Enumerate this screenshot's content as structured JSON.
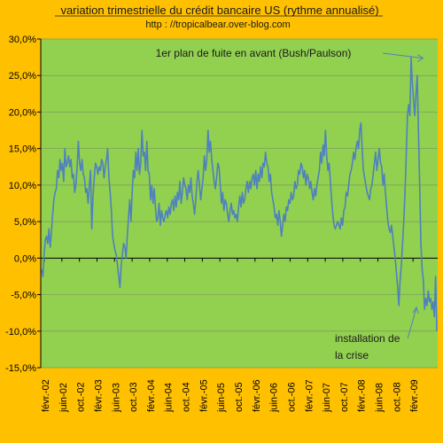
{
  "chart_data": {
    "type": "line",
    "title": "variation trimestrielle du crédit bancaire US (rythme annualisé)",
    "subtitle": "http : //tropicalbear.over-blog.com",
    "xlabel": "",
    "ylabel": "",
    "ylim": [
      -15,
      30
    ],
    "y_ticks": [
      30,
      25,
      20,
      15,
      10,
      5,
      0,
      -5,
      -10,
      -15
    ],
    "y_tick_labels": [
      "30,0%",
      "25,0%",
      "20,0%",
      "15,0%",
      "10,0%",
      "5,0%",
      "0,0%",
      "-5,0%",
      "-10,0%",
      "-15,0%"
    ],
    "x_tick_labels": [
      "févr.-02",
      "juin-02",
      "oct.-02",
      "févr.-03",
      "juin-03",
      "oct.-03",
      "févr.-04",
      "juin-04",
      "oct.-04",
      "févr.-05",
      "juin-05",
      "oct.-05",
      "févr.-06",
      "juin-06",
      "oct.-06",
      "févr.-07",
      "juin-07",
      "oct.-07",
      "févr.-08",
      "juin-08",
      "oct.-08",
      "févr.-09"
    ],
    "grid": true,
    "colors": {
      "plot_bg": "#92d050",
      "background": "#ffc000",
      "line": "#4f81bd",
      "grid": "#7a9a5a",
      "axis": "#000000"
    },
    "x_start": "févr.-02",
    "x_end": "mars-09",
    "series": [
      {
        "values": [
          -1.5,
          -2.5,
          0.5,
          2.5,
          3.0,
          2.0,
          4.0,
          1.5,
          3.5,
          6.0,
          8.0,
          9.0,
          9.5,
          12.0,
          11.0,
          13.5,
          12.0,
          13.0,
          10.5,
          15.0,
          12.5,
          13.0,
          14.0,
          12.5,
          13.5,
          11.0,
          11.5,
          9.0,
          10.0,
          12.5,
          16.0,
          13.0,
          12.0,
          13.5,
          11.5,
          11.0,
          9.0,
          9.5,
          7.5,
          10.0,
          12.0,
          4.0,
          8.5,
          11.0,
          13.0,
          12.5,
          11.5,
          12.5,
          12.0,
          13.5,
          13.0,
          11.0,
          12.5,
          13.5,
          15.0,
          11.0,
          9.0,
          6.5,
          3.0,
          2.0,
          1.0,
          0.5,
          -1.0,
          -2.5,
          -4.0,
          -1.0,
          0.5,
          2.0,
          1.5,
          0.0,
          3.0,
          5.5,
          8.0,
          5.0,
          9.0,
          12.0,
          11.0,
          14.5,
          12.0,
          15.0,
          11.5,
          13.0,
          17.5,
          14.0,
          14.5,
          12.0,
          16.0,
          12.0,
          11.5,
          8.0,
          10.0,
          7.5,
          9.5,
          7.0,
          5.0,
          5.5,
          7.5,
          4.5,
          6.5,
          5.5,
          5.0,
          6.0,
          6.5,
          5.5,
          7.0,
          6.0,
          7.5,
          8.0,
          6.5,
          8.5,
          7.0,
          9.0,
          8.0,
          10.5,
          7.5,
          9.0,
          11.0,
          10.0,
          9.5,
          8.0,
          10.0,
          9.0,
          11.0,
          8.5,
          7.5,
          6.0,
          8.0,
          10.5,
          12.0,
          10.0,
          8.0,
          9.5,
          11.0,
          14.0,
          12.0,
          13.5,
          17.5,
          14.5,
          16.0,
          13.5,
          12.0,
          10.5,
          9.5,
          11.0,
          13.0,
          12.5,
          10.0,
          7.5,
          9.0,
          6.5,
          8.0,
          7.5,
          6.0,
          5.0,
          6.5,
          7.5,
          6.0,
          6.5,
          5.5,
          6.0,
          5.0,
          7.0,
          8.5,
          7.0,
          9.0,
          7.5,
          8.0,
          9.5,
          10.5,
          9.0,
          10.5,
          9.5,
          11.0,
          11.5,
          10.0,
          12.0,
          9.5,
          11.5,
          10.5,
          12.5,
          11.0,
          13.0,
          12.5,
          14.5,
          13.0,
          12.5,
          10.5,
          11.5,
          9.0,
          8.0,
          7.0,
          5.5,
          6.0,
          4.5,
          6.5,
          5.0,
          3.0,
          4.5,
          6.0,
          5.0,
          7.0,
          6.5,
          8.0,
          7.5,
          9.0,
          8.0,
          8.5,
          10.5,
          9.5,
          10.0,
          12.0,
          11.5,
          13.0,
          12.5,
          11.0,
          12.0,
          10.0,
          11.5,
          11.0,
          9.5,
          10.5,
          9.0,
          8.0,
          9.5,
          8.5,
          10.0,
          11.0,
          12.0,
          14.5,
          13.0,
          15.5,
          14.0,
          17.5,
          14.0,
          12.0,
          13.0,
          10.5,
          8.0,
          6.0,
          4.5,
          4.0,
          4.5,
          5.0,
          4.5,
          4.0,
          5.5,
          4.5,
          6.5,
          7.0,
          9.0,
          8.5,
          10.0,
          11.5,
          12.0,
          13.0,
          14.5,
          13.5,
          15.0,
          16.0,
          15.0,
          17.5,
          18.5,
          15.0,
          12.0,
          11.0,
          10.0,
          9.0,
          8.5,
          8.0,
          9.5,
          10.0,
          11.5,
          13.0,
          14.5,
          12.0,
          13.5,
          15.0,
          13.0,
          12.5,
          10.0,
          11.5,
          9.0,
          7.0,
          5.0,
          4.0,
          3.5,
          4.5,
          3.0,
          1.5,
          0.0,
          -2.0,
          -4.0,
          -6.5,
          -3.0,
          -1.0,
          2.0,
          5.0,
          9.0,
          14.0,
          19.5,
          21.0,
          19.5,
          27.5,
          24.0,
          21.5,
          19.5,
          22.5,
          25.0,
          17.5,
          10.0,
          2.0,
          -1.5,
          -3.0,
          -7.0,
          -5.5,
          -6.5,
          -4.5,
          -6.0,
          -5.5,
          -7.0,
          -6.0,
          -8.0,
          -2.5,
          -10.0
        ]
      }
    ],
    "annotations": [
      {
        "text": "1er plan de fuite en avant (Bush/Paulson)",
        "target_index": 316,
        "target_value": 27.5
      },
      {
        "text_lines": [
          "installation de",
          "la crise"
        ],
        "target_index": 305,
        "target_value": -6.5
      }
    ]
  }
}
